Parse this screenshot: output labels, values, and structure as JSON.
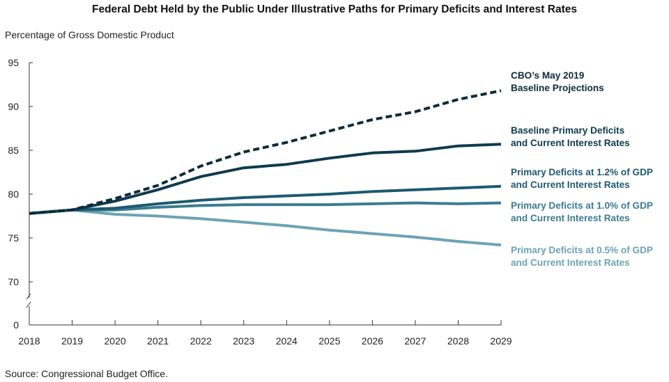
{
  "chart_data": {
    "type": "line",
    "title": "Federal Debt Held by the Public Under Illustrative Paths for Primary Deficits and Interest Rates",
    "ylabel": "Percentage of Gross Domestic Product",
    "xlabel": "",
    "source": "Source: Congressional Budget Office.",
    "x": [
      "2018",
      "2019",
      "2020",
      "2021",
      "2022",
      "2023",
      "2024",
      "2025",
      "2026",
      "2027",
      "2028",
      "2029"
    ],
    "y_ticks": [
      "95",
      "90",
      "85",
      "80",
      "75",
      "70",
      "0"
    ],
    "ylim": [
      70,
      95
    ],
    "y_axis_break": "between 0 and 70",
    "grid": false,
    "series": [
      {
        "name": "CBO’s May 2019 Baseline Projections",
        "label_lines": [
          "CBO’s May 2019",
          "Baseline Projections"
        ],
        "color": "#0d2b3a",
        "dashed": true,
        "values": [
          77.8,
          78.2,
          79.5,
          81.0,
          83.2,
          84.8,
          85.9,
          87.2,
          88.5,
          89.4,
          90.8,
          91.8
        ]
      },
      {
        "name": "Baseline Primary Deficits and Current Interest Rates",
        "label_lines": [
          "Baseline Primary Deficits",
          "and Current Interest Rates"
        ],
        "color": "#0f3a4d",
        "dashed": false,
        "values": [
          77.8,
          78.2,
          79.2,
          80.5,
          82.0,
          83.0,
          83.4,
          84.1,
          84.7,
          84.9,
          85.5,
          85.7
        ]
      },
      {
        "name": "Primary Deficits at 1.2% of GDP and Current Interest Rates",
        "label_lines": [
          "Primary Deficits at 1.2% of GDP",
          "and Current Interest Rates"
        ],
        "color": "#1d5a70",
        "dashed": false,
        "values": [
          77.8,
          78.2,
          78.4,
          78.9,
          79.3,
          79.6,
          79.8,
          80.0,
          80.3,
          80.5,
          80.7,
          80.9
        ]
      },
      {
        "name": "Primary Deficits at 1.0% of GDP and Current Interest Rates",
        "label_lines": [
          "Primary Deficits at 1.0% of GDP",
          "and Current Interest Rates"
        ],
        "color": "#3b7c90",
        "dashed": false,
        "values": [
          77.8,
          78.2,
          78.2,
          78.5,
          78.7,
          78.8,
          78.8,
          78.8,
          78.9,
          79.0,
          78.9,
          79.0
        ]
      },
      {
        "name": "Primary Deficits at 0.5% of GDP and Current Interest Rates",
        "label_lines": [
          "Primary Deficits at 0.5% of GDP",
          "and Current Interest Rates"
        ],
        "color": "#6ca3b5",
        "dashed": false,
        "values": [
          77.8,
          78.2,
          77.7,
          77.5,
          77.2,
          76.8,
          76.4,
          75.9,
          75.5,
          75.1,
          74.6,
          74.2
        ]
      }
    ]
  }
}
